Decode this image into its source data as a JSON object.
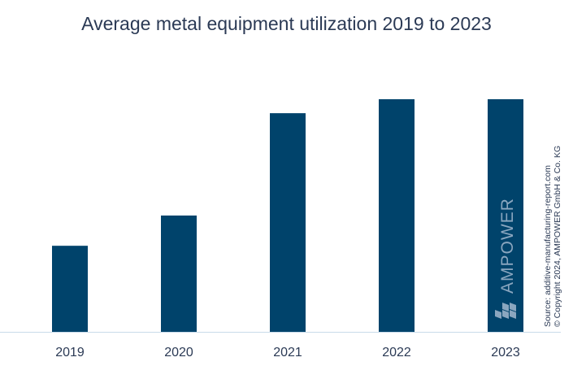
{
  "chart_data": {
    "type": "bar",
    "title": "Average metal equipment utilization 2019 to 2023",
    "categories": [
      "2019",
      "2020",
      "2021",
      "2022",
      "2023"
    ],
    "values": [
      37,
      50,
      94,
      100,
      100
    ],
    "ylim": [
      0,
      100
    ],
    "xlabel": "",
    "ylabel": "",
    "grid": false,
    "bar_color": "#00436b",
    "axis_color": "#c9dbea"
  },
  "watermark": "AMPOWER",
  "source": {
    "line1": "Source: additive-manufacturing-report.com",
    "line2": "© Copyright 2024, AMPOWER GmbH & Co. KG"
  }
}
